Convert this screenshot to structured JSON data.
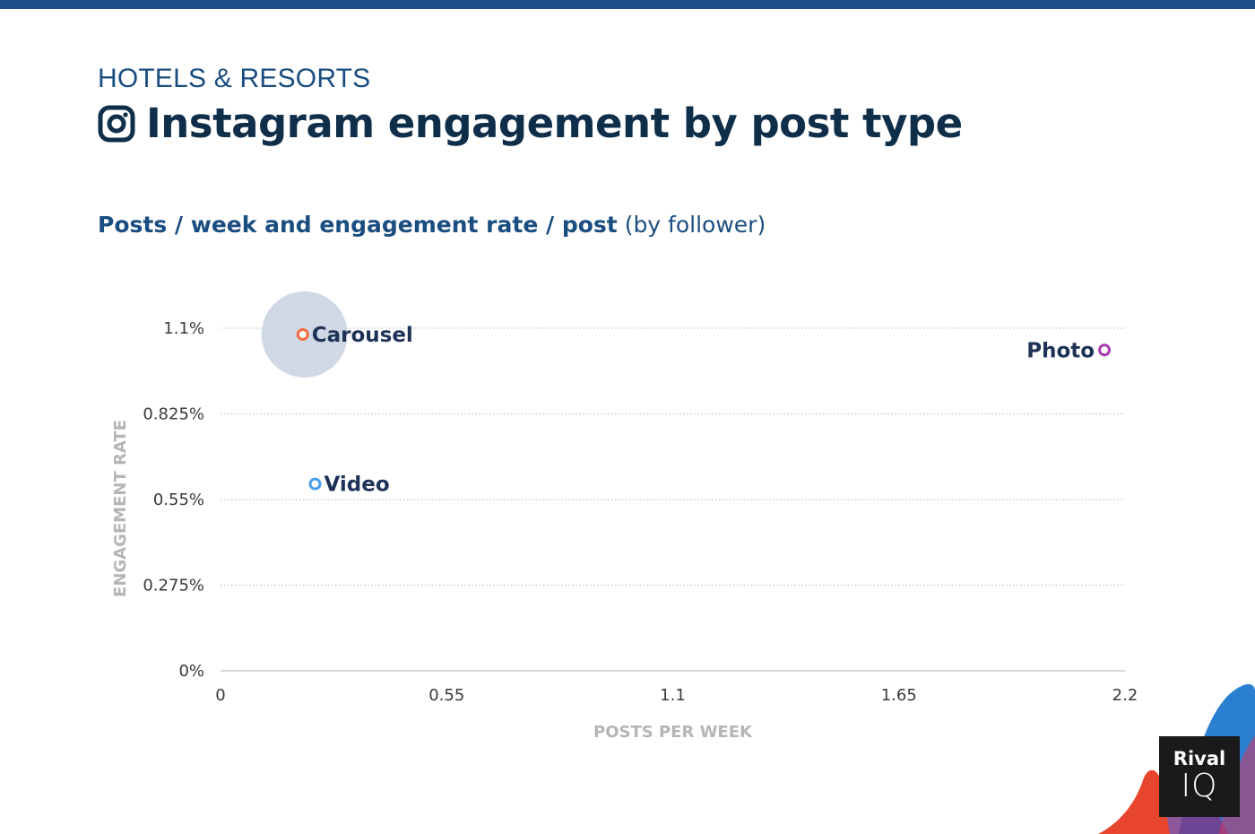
{
  "header": {
    "kicker": "HOTELS & RESORTS",
    "title": "Instagram engagement by post type",
    "title_icon": "instagram-icon"
  },
  "subtitle": {
    "bold": "Posts / week and engagement rate / post",
    "normal": "(by follower)"
  },
  "chart_data": {
    "type": "scatter",
    "title": "Posts / week and engagement rate / post (by follower)",
    "xlabel": "POSTS PER WEEK",
    "ylabel": "ENGAGEMENT RATE",
    "xlim": [
      0,
      2.2
    ],
    "ylim": [
      0,
      1.1
    ],
    "x_ticks": [
      "0",
      "0.55",
      "1.1",
      "1.65",
      "2.2"
    ],
    "y_ticks": [
      "0%",
      "0.275%",
      "0.55%",
      "0.825%",
      "1.1%"
    ],
    "grid": true,
    "points": [
      {
        "name": "Carousel",
        "x": 0.2,
        "y": 1.08,
        "color": "#f26c3c",
        "highlight": true,
        "label_side": "right"
      },
      {
        "name": "Video",
        "x": 0.23,
        "y": 0.6,
        "color": "#4a9ee8",
        "label_side": "right"
      },
      {
        "name": "Photo",
        "x": 2.15,
        "y": 1.03,
        "color": "#a63ab0",
        "label_side": "left"
      }
    ],
    "highlight_color": "#ccd6e3"
  },
  "logo": {
    "line1": "Rival",
    "line2": "IQ"
  },
  "colors": {
    "top_bar": "#1b4f86",
    "title": "#0e2e4a",
    "kicker": "#1a4d80"
  }
}
